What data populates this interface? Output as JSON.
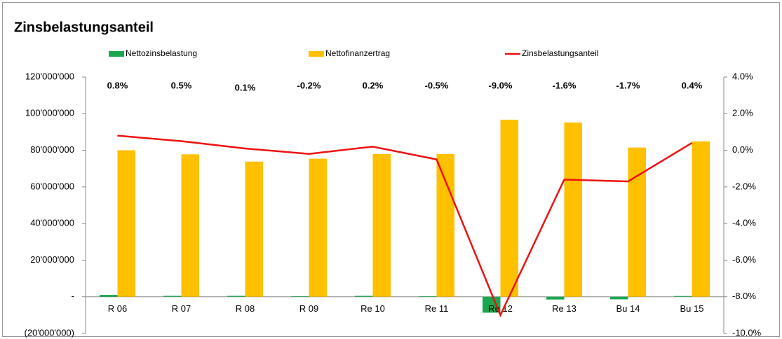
{
  "chart_data": {
    "type": "bar",
    "title": "Zinsbelastungsanteil",
    "categories": [
      "R 06",
      "R 07",
      "R 08",
      "R 09",
      "Re 10",
      "Re 11",
      "Re 12",
      "Re 13",
      "Bu 14",
      "Bu 15"
    ],
    "series": [
      {
        "name": "Nettozinsbelastung",
        "type": "bar",
        "color": "#1aa74f",
        "values": [
          1000000,
          500000,
          500000,
          300000,
          500000,
          300000,
          -8700000,
          -1500000,
          -1400000,
          400000
        ]
      },
      {
        "name": "Nettofinanzertrag",
        "type": "bar",
        "color": "#ffc000",
        "values": [
          80000000,
          77800000,
          73800000,
          75400000,
          78000000,
          78000000,
          96700000,
          95200000,
          81500000,
          84900000
        ]
      },
      {
        "name": "Zinsbelastungsanteil",
        "type": "line",
        "axis": "y2",
        "color": "#ee1111",
        "values": [
          0.8,
          0.5,
          0.1,
          -0.2,
          0.2,
          -0.5,
          -9.0,
          -1.6,
          -1.7,
          0.4
        ],
        "value_labels": [
          "0.8%",
          "0.5%",
          "0.1%",
          "-0.2%",
          "0.2%",
          "-0.5%",
          "-9.0%",
          "-1.6%",
          "-1.7%",
          "0.4%"
        ]
      }
    ],
    "ylim": [
      -20000000,
      120000000
    ],
    "yticks": [
      {
        "value": -20000000,
        "label": "(20'000'000)"
      },
      {
        "value": 0,
        "label": "-"
      },
      {
        "value": 20000000,
        "label": "20'000'000"
      },
      {
        "value": 40000000,
        "label": "40'000'000"
      },
      {
        "value": 60000000,
        "label": "60'000'000"
      },
      {
        "value": 80000000,
        "label": "80'000'000"
      },
      {
        "value": 100000000,
        "label": "100'000'000"
      },
      {
        "value": 120000000,
        "label": "120'000'000"
      }
    ],
    "y2lim": [
      -10,
      4
    ],
    "y2ticks": [
      {
        "value": -10,
        "label": "-10.0%"
      },
      {
        "value": -8,
        "label": "-8.0%"
      },
      {
        "value": -6,
        "label": "-6.0%"
      },
      {
        "value": -4,
        "label": "-4.0%"
      },
      {
        "value": -2,
        "label": "-2.0%"
      },
      {
        "value": 0,
        "label": "0.0%"
      },
      {
        "value": 2,
        "label": "2.0%"
      },
      {
        "value": 4,
        "label": "4.0%"
      }
    ],
    "grid": false
  }
}
